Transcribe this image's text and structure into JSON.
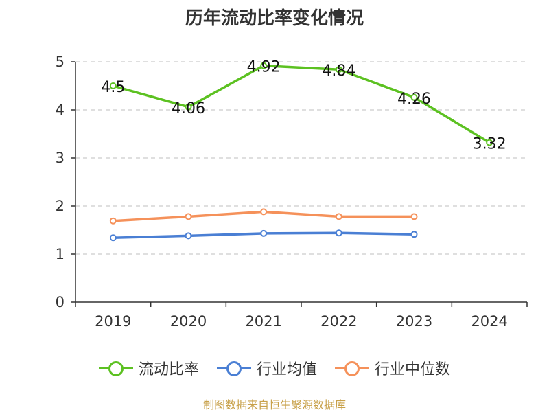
{
  "chart_data": {
    "type": "line",
    "title": "历年流动比率变化情况",
    "categories": [
      "2019",
      "2020",
      "2021",
      "2022",
      "2023",
      "2024"
    ],
    "ylim": [
      0,
      5
    ],
    "yticks": [
      0,
      1,
      2,
      3,
      4,
      5
    ],
    "grid": true,
    "legend_position": "bottom",
    "series": [
      {
        "name": "流动比率",
        "color": "#5cc121",
        "values": [
          4.5,
          4.06,
          4.92,
          4.84,
          4.26,
          3.32
        ],
        "labels": [
          "4.5",
          "4.06",
          "4.92",
          "4.84",
          "4.26",
          "3.32"
        ]
      },
      {
        "name": "行业均值",
        "color": "#4a7fd4",
        "values": [
          1.34,
          1.38,
          1.43,
          1.44,
          1.41,
          null
        ]
      },
      {
        "name": "行业中位数",
        "color": "#f5915a",
        "values": [
          1.69,
          1.78,
          1.88,
          1.78,
          1.78,
          null
        ]
      }
    ]
  },
  "footer": "制图数据来自恒生聚源数据库"
}
